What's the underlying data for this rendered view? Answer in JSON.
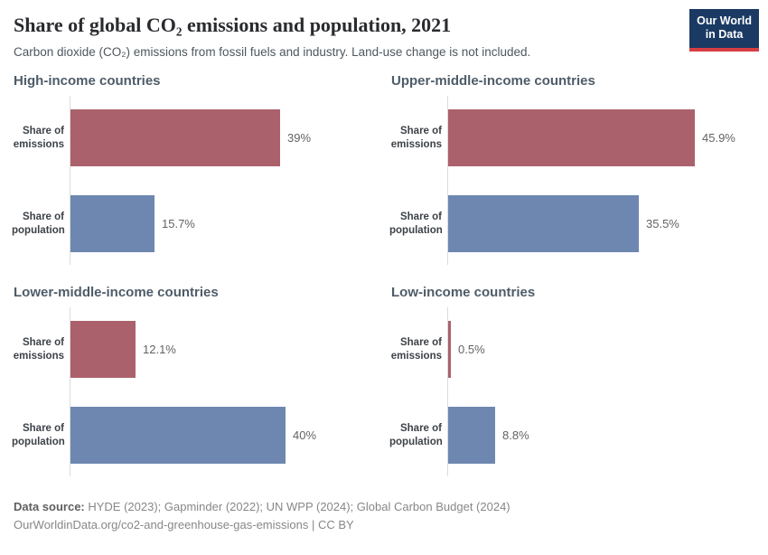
{
  "header": {
    "title": "Share of global CO₂ emissions and population, 2021",
    "subtitle": "Carbon dioxide (CO₂) emissions from fossil fuels and industry. Land-use change is not included.",
    "logo": {
      "line1": "Our World",
      "line2": "in Data"
    }
  },
  "chart_data": {
    "type": "bar",
    "orientation": "horizontal",
    "title": "Share of global CO₂ emissions and population, 2021",
    "subtitle": "Carbon dioxide (CO₂) emissions from fossil fuels and industry. Land-use change is not included.",
    "unit": "%",
    "categories": [
      "Share of emissions",
      "Share of population"
    ],
    "xlim": [
      0,
      50
    ],
    "grid": false,
    "legend": "none",
    "colors": {
      "emissions": "#ab616b",
      "population": "#6d87b0"
    },
    "axis_color": "#dcdcdc",
    "panels": [
      {
        "title": "High-income countries",
        "rows": [
          {
            "series": "emissions",
            "label": "Share of\nemissions",
            "value": 39,
            "display": "39%"
          },
          {
            "series": "population",
            "label": "Share of\npopulation",
            "value": 15.7,
            "display": "15.7%"
          }
        ]
      },
      {
        "title": "Upper-middle-income countries",
        "rows": [
          {
            "series": "emissions",
            "label": "Share of\nemissions",
            "value": 45.9,
            "display": "45.9%"
          },
          {
            "series": "population",
            "label": "Share of\npopulation",
            "value": 35.5,
            "display": "35.5%"
          }
        ]
      },
      {
        "title": "Lower-middle-income countries",
        "rows": [
          {
            "series": "emissions",
            "label": "Share of\nemissions",
            "value": 12.1,
            "display": "12.1%"
          },
          {
            "series": "population",
            "label": "Share of\npopulation",
            "value": 40,
            "display": "40%"
          }
        ]
      },
      {
        "title": "Low-income countries",
        "rows": [
          {
            "series": "emissions",
            "label": "Share of\nemissions",
            "value": 0.5,
            "display": "0.5%"
          },
          {
            "series": "population",
            "label": "Share of\npopulation",
            "value": 8.8,
            "display": "8.8%"
          }
        ]
      }
    ]
  },
  "footer": {
    "source_label": "Data source:",
    "source_text": " HYDE (2023); Gapminder (2022); UN WPP (2024); Global Carbon Budget (2024)",
    "link_text": "OurWorldinData.org/co2-and-greenhouse-gas-emissions",
    "separator": " | ",
    "license": "CC BY"
  }
}
